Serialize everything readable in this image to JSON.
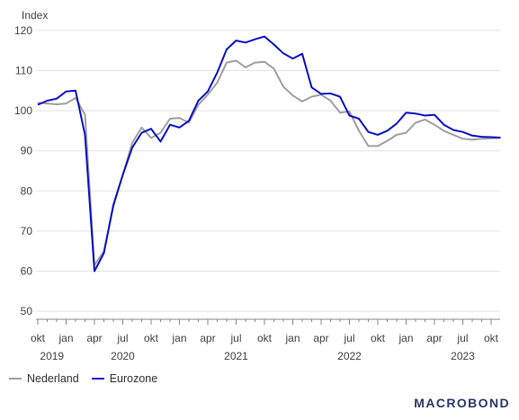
{
  "chart_data": {
    "type": "line",
    "unit_label": "Index",
    "ylim": [
      48,
      122
    ],
    "yticks": [
      50,
      60,
      70,
      80,
      90,
      100,
      110,
      120
    ],
    "month_ticks": [
      "okt",
      "jan",
      "apr",
      "jul",
      "okt",
      "jan",
      "apr",
      "jul",
      "okt",
      "jan",
      "apr",
      "jul",
      "okt",
      "jan",
      "apr",
      "jul",
      "okt"
    ],
    "year_labels": [
      "2019",
      "2020",
      "2021",
      "2022",
      "2023"
    ],
    "x": [
      "2019-10",
      "2019-11",
      "2019-12",
      "2020-01",
      "2020-02",
      "2020-03",
      "2020-04",
      "2020-05",
      "2020-06",
      "2020-07",
      "2020-08",
      "2020-09",
      "2020-10",
      "2020-11",
      "2020-12",
      "2021-01",
      "2021-02",
      "2021-03",
      "2021-04",
      "2021-05",
      "2021-06",
      "2021-07",
      "2021-08",
      "2021-09",
      "2021-10",
      "2021-11",
      "2021-12",
      "2022-01",
      "2022-02",
      "2022-03",
      "2022-04",
      "2022-05",
      "2022-06",
      "2022-07",
      "2022-08",
      "2022-09",
      "2022-10",
      "2022-11",
      "2022-12",
      "2023-01",
      "2023-02",
      "2023-03",
      "2023-04",
      "2023-05",
      "2023-06",
      "2023-07",
      "2023-08",
      "2023-09",
      "2023-10",
      "2023-11"
    ],
    "series": [
      {
        "name": "Nederland",
        "color": "#a0a0a0",
        "values": [
          102.0,
          101.8,
          101.6,
          101.8,
          103.2,
          99.0,
          61.5,
          65.0,
          76.0,
          84.0,
          92.0,
          95.8,
          93.2,
          94.5,
          98.0,
          98.2,
          97.0,
          101.5,
          104.0,
          107.0,
          112.0,
          112.5,
          110.8,
          112.0,
          112.2,
          110.5,
          106.0,
          103.8,
          102.3,
          103.5,
          104.0,
          102.5,
          99.5,
          99.8,
          95.0,
          91.2,
          91.2,
          92.5,
          94.0,
          94.5,
          97.0,
          97.8,
          96.5,
          95.0,
          94.0,
          93.0,
          92.8,
          93.0,
          93.1,
          93.2
        ]
      },
      {
        "name": "Eurozone",
        "color": "#0a12c8",
        "values": [
          101.5,
          102.5,
          103.0,
          104.8,
          105.0,
          94.0,
          60.0,
          64.5,
          76.5,
          84.0,
          90.8,
          94.5,
          95.5,
          92.3,
          96.5,
          95.8,
          97.5,
          102.5,
          104.8,
          109.5,
          115.3,
          117.5,
          117.0,
          117.8,
          118.5,
          116.5,
          114.3,
          113.0,
          114.2,
          105.8,
          104.2,
          104.3,
          103.5,
          98.8,
          98.0,
          94.7,
          94.0,
          95.0,
          96.8,
          99.5,
          99.3,
          98.8,
          99.0,
          96.5,
          95.2,
          94.7,
          93.8,
          93.5,
          93.4,
          93.3
        ]
      }
    ]
  },
  "legend": {
    "item_1": "Nederland",
    "item_2": "Eurozone"
  },
  "brand": "MACROBOND"
}
